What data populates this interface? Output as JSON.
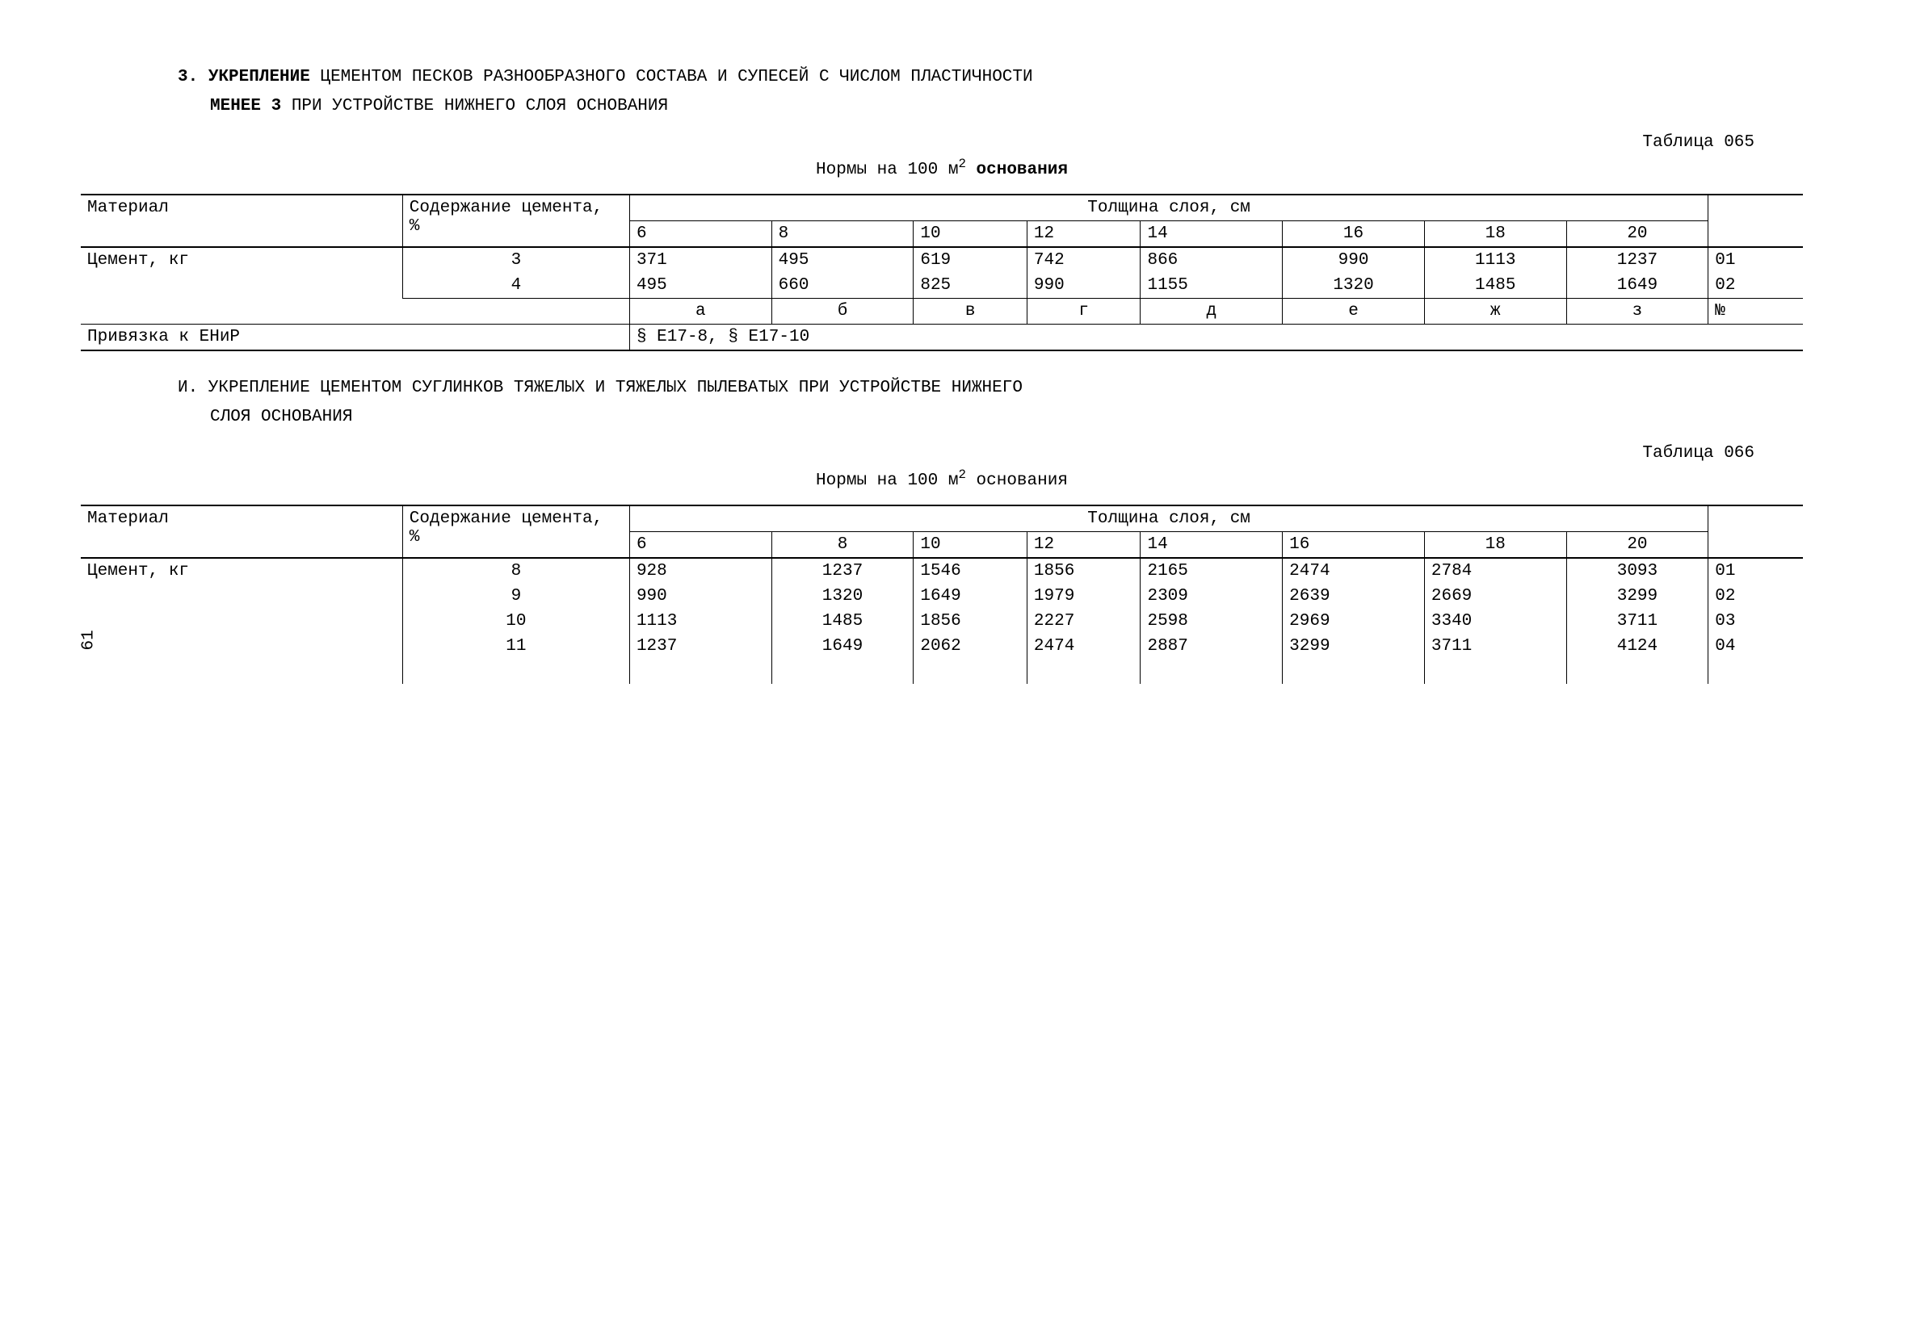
{
  "page_number": "61",
  "section3": {
    "num": "3.",
    "lead": "УКРЕПЛЕНИЕ",
    "rest": " ЦЕМЕНТОМ ПЕСКОВ РАЗНООБРАЗНОГО СОСТАВА И СУПЕСЕЙ С ЧИСЛОМ ПЛАСТИЧНОСТИ",
    "line2_lead": "МЕНЕЕ 3",
    "line2_rest": " ПРИ УСТРОЙСТВЕ НИЖНЕГО СЛОЯ ОСНОВАНИЯ"
  },
  "table065": {
    "label": "Таблица 065",
    "caption_plain": "Нормы на 100 м",
    "caption_sup": "2",
    "caption_bold": "  основания",
    "header_material": "Материал",
    "header_cement": "Содержание цемента, %",
    "header_thickness": "Толщина слоя, см",
    "thickness_cols": [
      "6",
      "8",
      "10",
      "12",
      "14",
      "16",
      "18",
      "20"
    ],
    "material": "Цемент, кг",
    "percents": [
      "3",
      "4"
    ],
    "rows": [
      [
        "371",
        "495",
        "619",
        "742",
        "866",
        "990",
        "1113",
        "1237"
      ],
      [
        "495",
        "660",
        "825",
        "990",
        "1155",
        "1320",
        "1485",
        "1649"
      ]
    ],
    "codes": [
      "01",
      "02"
    ],
    "letters": [
      "а",
      "б",
      "в",
      "г",
      "д",
      "е",
      "ж",
      "з"
    ],
    "letters_code": "№",
    "enir_label": "Привязка к ЕНиР",
    "enir_value": "§ Е17-8, § Е17-10"
  },
  "sectionI": {
    "line1": "И. УКРЕПЛЕНИЕ ЦЕМЕНТОМ СУГЛИНКОВ ТЯЖЕЛЫХ И ТЯЖЕЛЫХ ПЫЛЕВАТЫХ ПРИ УСТРОЙСТВЕ НИЖНЕГО",
    "line2": "СЛОЯ ОСНОВАНИЯ"
  },
  "table066": {
    "label": "Таблица 066",
    "caption_plain": "Нормы на 100 м",
    "caption_sup": "2",
    "caption_bold": " основания",
    "header_material": "Материал",
    "header_cement": "Содержание цемента, %",
    "header_thickness": "Толщина слоя, см",
    "thickness_cols": [
      "6",
      "8",
      "10",
      "12",
      "14",
      "16",
      "18",
      "20"
    ],
    "material": "Цемент, кг",
    "percents": [
      "8",
      "9",
      "10",
      "11"
    ],
    "rows": [
      [
        "928",
        "1237",
        "1546",
        "1856",
        "2165",
        "2474",
        "2784",
        "3093"
      ],
      [
        "990",
        "1320",
        "1649",
        "1979",
        "2309",
        "2639",
        "2669",
        "3299"
      ],
      [
        "1113",
        "1485",
        "1856",
        "2227",
        "2598",
        "2969",
        "3340",
        "3711"
      ],
      [
        "1237",
        "1649",
        "2062",
        "2474",
        "2887",
        "3299",
        "3711",
        "4124"
      ]
    ],
    "codes": [
      "01",
      "02",
      "03",
      "04"
    ]
  }
}
